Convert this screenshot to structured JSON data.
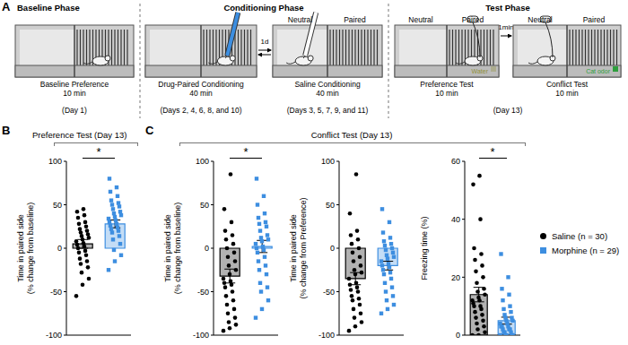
{
  "panel_labels": [
    "A",
    "B",
    "C"
  ],
  "diagram": {
    "phases": [
      {
        "title": "Baseline Phase",
        "steps": [
          {
            "caption": [
              "Baseline Preference",
              "10 min"
            ],
            "day": "(Day 1)"
          }
        ]
      },
      {
        "title": "Conditioning Phase",
        "interval": "1d",
        "steps": [
          {
            "caption": [
              "Drug-Paired Conditioning",
              "40 min"
            ],
            "day": "(Days 2, 4, 6, 8, and 10)"
          },
          {
            "labels": [
              "Neutral",
              "Paired"
            ],
            "caption": [
              "Saline Conditioning",
              "40 min"
            ],
            "day": "(Days 3, 5, 7, 9, and 11)"
          }
        ]
      },
      {
        "title": "Test Phase",
        "interval": "1min",
        "day": "(Day 13)",
        "steps": [
          {
            "labels": [
              "Neutral",
              "Paired"
            ],
            "caption": [
              "Preference Test",
              "10 min"
            ],
            "stimulus": "Water"
          },
          {
            "labels": [
              "Neutral",
              "Paired"
            ],
            "caption": [
              "Conflict Test",
              "10 min"
            ],
            "stimulus": "Cat odor"
          }
        ]
      }
    ]
  },
  "group_title": "Conflict Test (Day 13)",
  "chart_data": [
    {
      "type": "bar",
      "title": "Preference Test (Day 13)",
      "y_label": [
        "Time in paired side",
        "(% change from baseline)"
      ],
      "categories": [
        "Saline (n = 30)",
        "Morphine (n = 29)"
      ],
      "colors": [
        "#000000",
        "#3d8ee0"
      ],
      "values": [
        5,
        28
      ],
      "errors": [
        5,
        4.5
      ],
      "points": [
        [
          -55,
          -42,
          -35,
          -28,
          -22,
          -18,
          -15,
          -12,
          -8,
          -5,
          -3,
          0,
          2,
          4,
          6,
          8,
          10,
          12,
          14,
          16,
          18,
          20,
          22,
          25,
          28,
          30,
          35,
          38,
          42,
          45
        ],
        [
          -25,
          -15,
          -8,
          -2,
          5,
          10,
          14,
          18,
          20,
          22,
          24,
          26,
          28,
          30,
          32,
          34,
          36,
          38,
          40,
          42,
          45,
          48,
          50,
          52,
          55,
          60,
          65,
          70,
          80
        ]
      ],
      "ylim": [
        -100,
        100
      ],
      "yticks": [
        -100,
        -50,
        0,
        50,
        100
      ],
      "tick_labels": "y",
      "annotations": [
        "*"
      ],
      "legend": "right"
    },
    {
      "type": "bar",
      "y_label": [
        "Time in paired side",
        "(% change from baseline)"
      ],
      "categories": [
        "Saline (n = 30)",
        "Morphine (n = 29)"
      ],
      "colors": [
        "#000000",
        "#3d8ee0"
      ],
      "values": [
        -32,
        2
      ],
      "errors": [
        8,
        7
      ],
      "points": [
        [
          -95,
          -92,
          -88,
          -85,
          -80,
          -75,
          -70,
          -65,
          -60,
          -55,
          -50,
          -45,
          -42,
          -40,
          -38,
          -35,
          -30,
          -25,
          -20,
          -15,
          -10,
          -5,
          0,
          5,
          10,
          15,
          20,
          30,
          45,
          85
        ],
        [
          -80,
          -70,
          -60,
          -50,
          -45,
          -40,
          -30,
          -25,
          -20,
          -15,
          -10,
          -5,
          -2,
          0,
          2,
          5,
          8,
          10,
          12,
          15,
          20,
          25,
          28,
          30,
          35,
          40,
          50,
          60,
          80
        ]
      ],
      "ylim": [
        -100,
        100
      ],
      "yticks": [
        -100,
        -50,
        0,
        50,
        100
      ],
      "tick_labels": "y",
      "annotations": [
        "*"
      ]
    },
    {
      "type": "bar",
      "y_label": [
        "Time in paired side",
        "(% change from Preference)"
      ],
      "categories": [
        "Saline (n = 30)",
        "Morphine (n = 29)"
      ],
      "colors": [
        "#000000",
        "#3d8ee0"
      ],
      "values": [
        -35,
        -20
      ],
      "errors": [
        7,
        5
      ],
      "points": [
        [
          -95,
          -90,
          -85,
          -80,
          -75,
          -70,
          -65,
          -60,
          -58,
          -55,
          -50,
          -48,
          -45,
          -42,
          -40,
          -35,
          -30,
          -28,
          -25,
          -20,
          -15,
          -10,
          -5,
          0,
          5,
          10,
          15,
          20,
          40,
          85
        ],
        [
          -75,
          -70,
          -65,
          -60,
          -55,
          -50,
          -45,
          -40,
          -35,
          -30,
          -28,
          -25,
          -22,
          -20,
          -18,
          -15,
          -12,
          -10,
          -8,
          -5,
          -2,
          0,
          3,
          5,
          8,
          12,
          18,
          30,
          45
        ]
      ],
      "ylim": [
        -100,
        100
      ],
      "yticks": [
        -100,
        -50,
        0,
        50,
        100
      ],
      "tick_labels": "y"
    },
    {
      "type": "bar",
      "y_label": [
        "Freezing time (%)"
      ],
      "categories": [
        "Saline (n = 30)",
        "Morphine (n = 29)"
      ],
      "colors": [
        "#000000",
        "#3d8ee0"
      ],
      "values": [
        14,
        5
      ],
      "errors": [
        2.5,
        1.2
      ],
      "points": [
        [
          0,
          0,
          1,
          2,
          3,
          4,
          5,
          6,
          7,
          8,
          9,
          10,
          10,
          11,
          12,
          12,
          13,
          14,
          15,
          16,
          18,
          20,
          22,
          24,
          26,
          28,
          30,
          40,
          52,
          55
        ],
        [
          0,
          0,
          0,
          0,
          0,
          1,
          1,
          1,
          2,
          2,
          2,
          3,
          3,
          3,
          4,
          4,
          5,
          5,
          6,
          6,
          7,
          8,
          9,
          10,
          12,
          14,
          16,
          20,
          28
        ]
      ],
      "ylim": [
        0,
        60
      ],
      "yticks": [
        0,
        20,
        40,
        60
      ],
      "tick_labels": "y",
      "annotations": [
        "*"
      ]
    }
  ]
}
